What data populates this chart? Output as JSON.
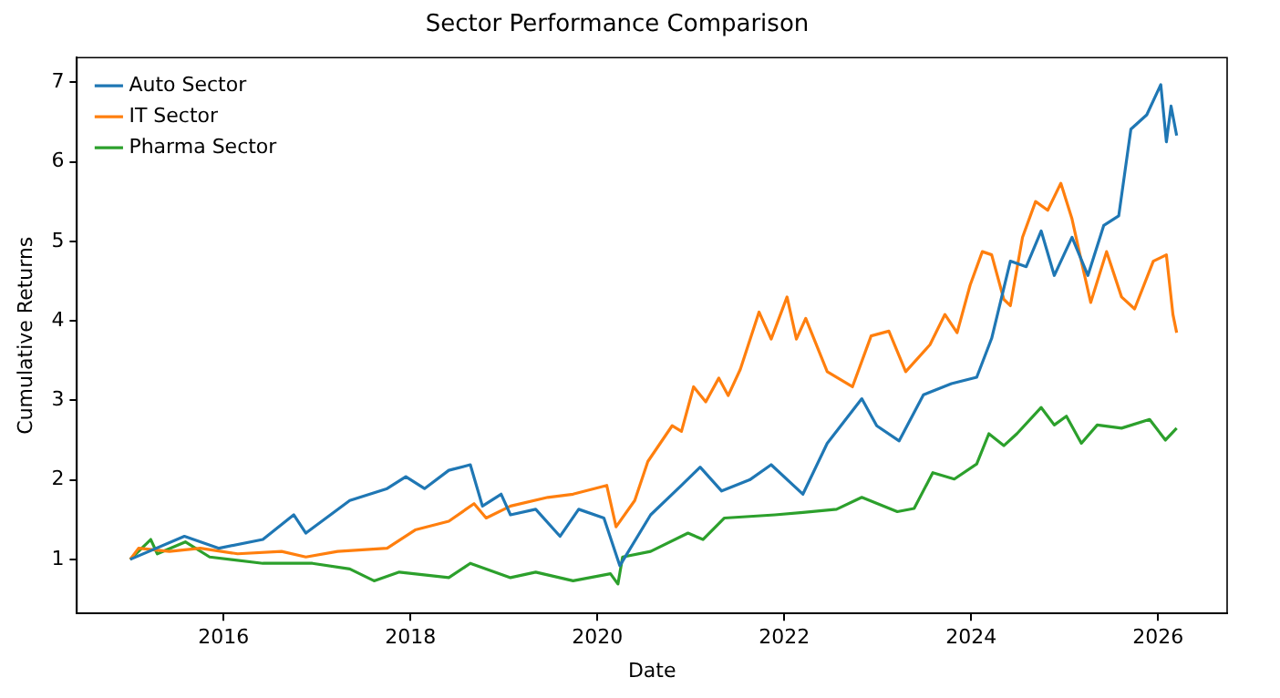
{
  "chart_data": {
    "type": "line",
    "title": "Sector Performance Comparison",
    "xlabel": "Date",
    "ylabel": "Cumulative Returns",
    "xlim": [
      2014.43,
      2026.74
    ],
    "xticks": [
      2016,
      2018,
      2020,
      2022,
      2024,
      2026
    ],
    "ylim": [
      0.32,
      7.31
    ],
    "yticks": [
      1,
      2,
      3,
      4,
      5,
      6,
      7
    ],
    "grid": false,
    "legend": "top left",
    "marker": "none",
    "line_style": "solid",
    "series": [
      {
        "name": "Auto Sector",
        "color": "#1f77b4",
        "x": [
          2015.0,
          2015.58,
          2015.95,
          2016.42,
          2016.75,
          2016.88,
          2017.35,
          2017.75,
          2017.95,
          2018.15,
          2018.41,
          2018.64,
          2018.77,
          2018.97,
          2019.07,
          2019.34,
          2019.6,
          2019.8,
          2020.07,
          2020.24,
          2020.57,
          2020.9,
          2021.1,
          2021.33,
          2021.63,
          2021.86,
          2022.2,
          2022.46,
          2022.83,
          2022.99,
          2023.23,
          2023.49,
          2023.79,
          2024.06,
          2024.22,
          2024.42,
          2024.59,
          2024.75,
          2024.89,
          2025.08,
          2025.25,
          2025.42,
          2025.58,
          2025.71,
          2025.88,
          2026.03,
          2026.09,
          2026.14,
          2026.2
        ],
        "values": [
          1.0,
          1.29,
          1.14,
          1.25,
          1.56,
          1.33,
          1.74,
          1.89,
          2.04,
          1.89,
          2.12,
          2.19,
          1.67,
          1.82,
          1.56,
          1.63,
          1.29,
          1.63,
          1.52,
          0.92,
          1.56,
          1.93,
          2.16,
          1.86,
          2.0,
          2.19,
          1.82,
          2.46,
          3.02,
          2.68,
          2.49,
          3.07,
          3.21,
          3.29,
          3.78,
          4.75,
          4.68,
          5.13,
          4.57,
          5.05,
          4.57,
          5.2,
          5.32,
          6.41,
          6.59,
          6.97,
          6.25,
          6.7,
          6.33
        ]
      },
      {
        "name": "IT Sector",
        "color": "#ff7f0e",
        "x": [
          2015.0,
          2015.09,
          2015.42,
          2015.75,
          2016.15,
          2016.62,
          2016.88,
          2017.22,
          2017.75,
          2018.05,
          2018.41,
          2018.68,
          2018.81,
          2019.07,
          2019.47,
          2019.74,
          2020.1,
          2020.2,
          2020.4,
          2020.54,
          2020.8,
          2020.9,
          2021.03,
          2021.16,
          2021.3,
          2021.4,
          2021.53,
          2021.73,
          2021.86,
          2022.03,
          2022.13,
          2022.23,
          2022.46,
          2022.73,
          2022.93,
          2023.12,
          2023.3,
          2023.56,
          2023.72,
          2023.85,
          2023.99,
          2024.12,
          2024.22,
          2024.35,
          2024.42,
          2024.55,
          2024.69,
          2024.82,
          2024.96,
          2025.08,
          2025.18,
          2025.28,
          2025.45,
          2025.61,
          2025.75,
          2025.95,
          2026.09,
          2026.16,
          2026.2
        ],
        "values": [
          1.0,
          1.14,
          1.1,
          1.14,
          1.07,
          1.1,
          1.03,
          1.1,
          1.14,
          1.37,
          1.48,
          1.7,
          1.52,
          1.67,
          1.78,
          1.82,
          1.93,
          1.41,
          1.74,
          2.23,
          2.68,
          2.61,
          3.17,
          2.98,
          3.28,
          3.06,
          3.39,
          4.11,
          3.77,
          4.3,
          3.77,
          4.03,
          3.36,
          3.17,
          3.81,
          3.87,
          3.36,
          3.7,
          4.08,
          3.85,
          4.45,
          4.87,
          4.83,
          4.27,
          4.19,
          5.05,
          5.5,
          5.39,
          5.73,
          5.28,
          4.75,
          4.23,
          4.87,
          4.3,
          4.15,
          4.75,
          4.83,
          4.08,
          3.85
        ]
      },
      {
        "name": "Pharma Sector",
        "color": "#2ca02c",
        "x": [
          2015.0,
          2015.22,
          2015.29,
          2015.59,
          2015.85,
          2016.42,
          2016.95,
          2017.35,
          2017.61,
          2017.88,
          2018.41,
          2018.64,
          2019.07,
          2019.34,
          2019.74,
          2020.14,
          2020.22,
          2020.27,
          2020.57,
          2020.97,
          2021.13,
          2021.36,
          2021.9,
          2022.2,
          2022.56,
          2022.83,
          2023.21,
          2023.39,
          2023.59,
          2023.82,
          2024.06,
          2024.19,
          2024.35,
          2024.49,
          2024.75,
          2024.89,
          2025.02,
          2025.18,
          2025.35,
          2025.61,
          2025.91,
          2026.08,
          2026.2
        ],
        "values": [
          1.0,
          1.25,
          1.07,
          1.22,
          1.03,
          0.95,
          0.95,
          0.88,
          0.73,
          0.84,
          0.77,
          0.95,
          0.77,
          0.84,
          0.73,
          0.82,
          0.69,
          1.03,
          1.1,
          1.33,
          1.25,
          1.52,
          1.56,
          1.59,
          1.63,
          1.78,
          1.6,
          1.64,
          2.09,
          2.01,
          2.2,
          2.58,
          2.43,
          2.58,
          2.91,
          2.69,
          2.8,
          2.46,
          2.69,
          2.65,
          2.76,
          2.5,
          2.65
        ]
      }
    ]
  }
}
